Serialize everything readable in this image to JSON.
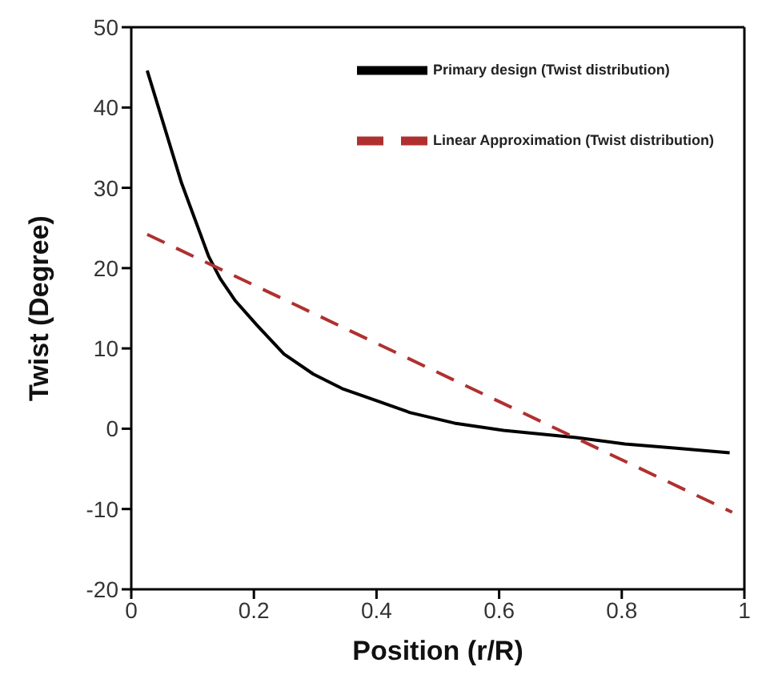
{
  "chart_data": {
    "type": "line",
    "xlabel": "Position (r/R)",
    "ylabel": "Twist (Degree)",
    "xlim": [
      0,
      1
    ],
    "xticks": [
      0,
      0.2,
      0.4,
      0.6,
      0.8,
      1
    ],
    "ylim": [
      -20,
      50
    ],
    "yticks": [
      -20,
      -10,
      0,
      10,
      20,
      30,
      40,
      50
    ],
    "grid": false,
    "legend": "top right",
    "marker": "none",
    "series": [
      {
        "name": "Primary design (Twist distribution)",
        "color": "#000000",
        "line_style": "solid",
        "x": [
          0.026,
          0.082,
          0.126,
          0.145,
          0.169,
          0.205,
          0.249,
          0.297,
          0.344,
          0.4,
          0.455,
          0.527,
          0.607,
          0.726,
          0.805,
          0.885,
          0.976
        ],
        "values": [
          44.6,
          30.6,
          21.5,
          18.7,
          16.0,
          12.9,
          9.3,
          6.8,
          5.0,
          3.5,
          2.0,
          0.7,
          -0.2,
          -1.1,
          -1.9,
          -2.4,
          -3.0
        ]
      },
      {
        "name": "Linear Approximation (Twist distribution)",
        "color": "#b03030",
        "line_style": "dashed",
        "x": [
          0.026,
          0.98
        ],
        "values": [
          24.2,
          -10.4
        ]
      }
    ]
  }
}
